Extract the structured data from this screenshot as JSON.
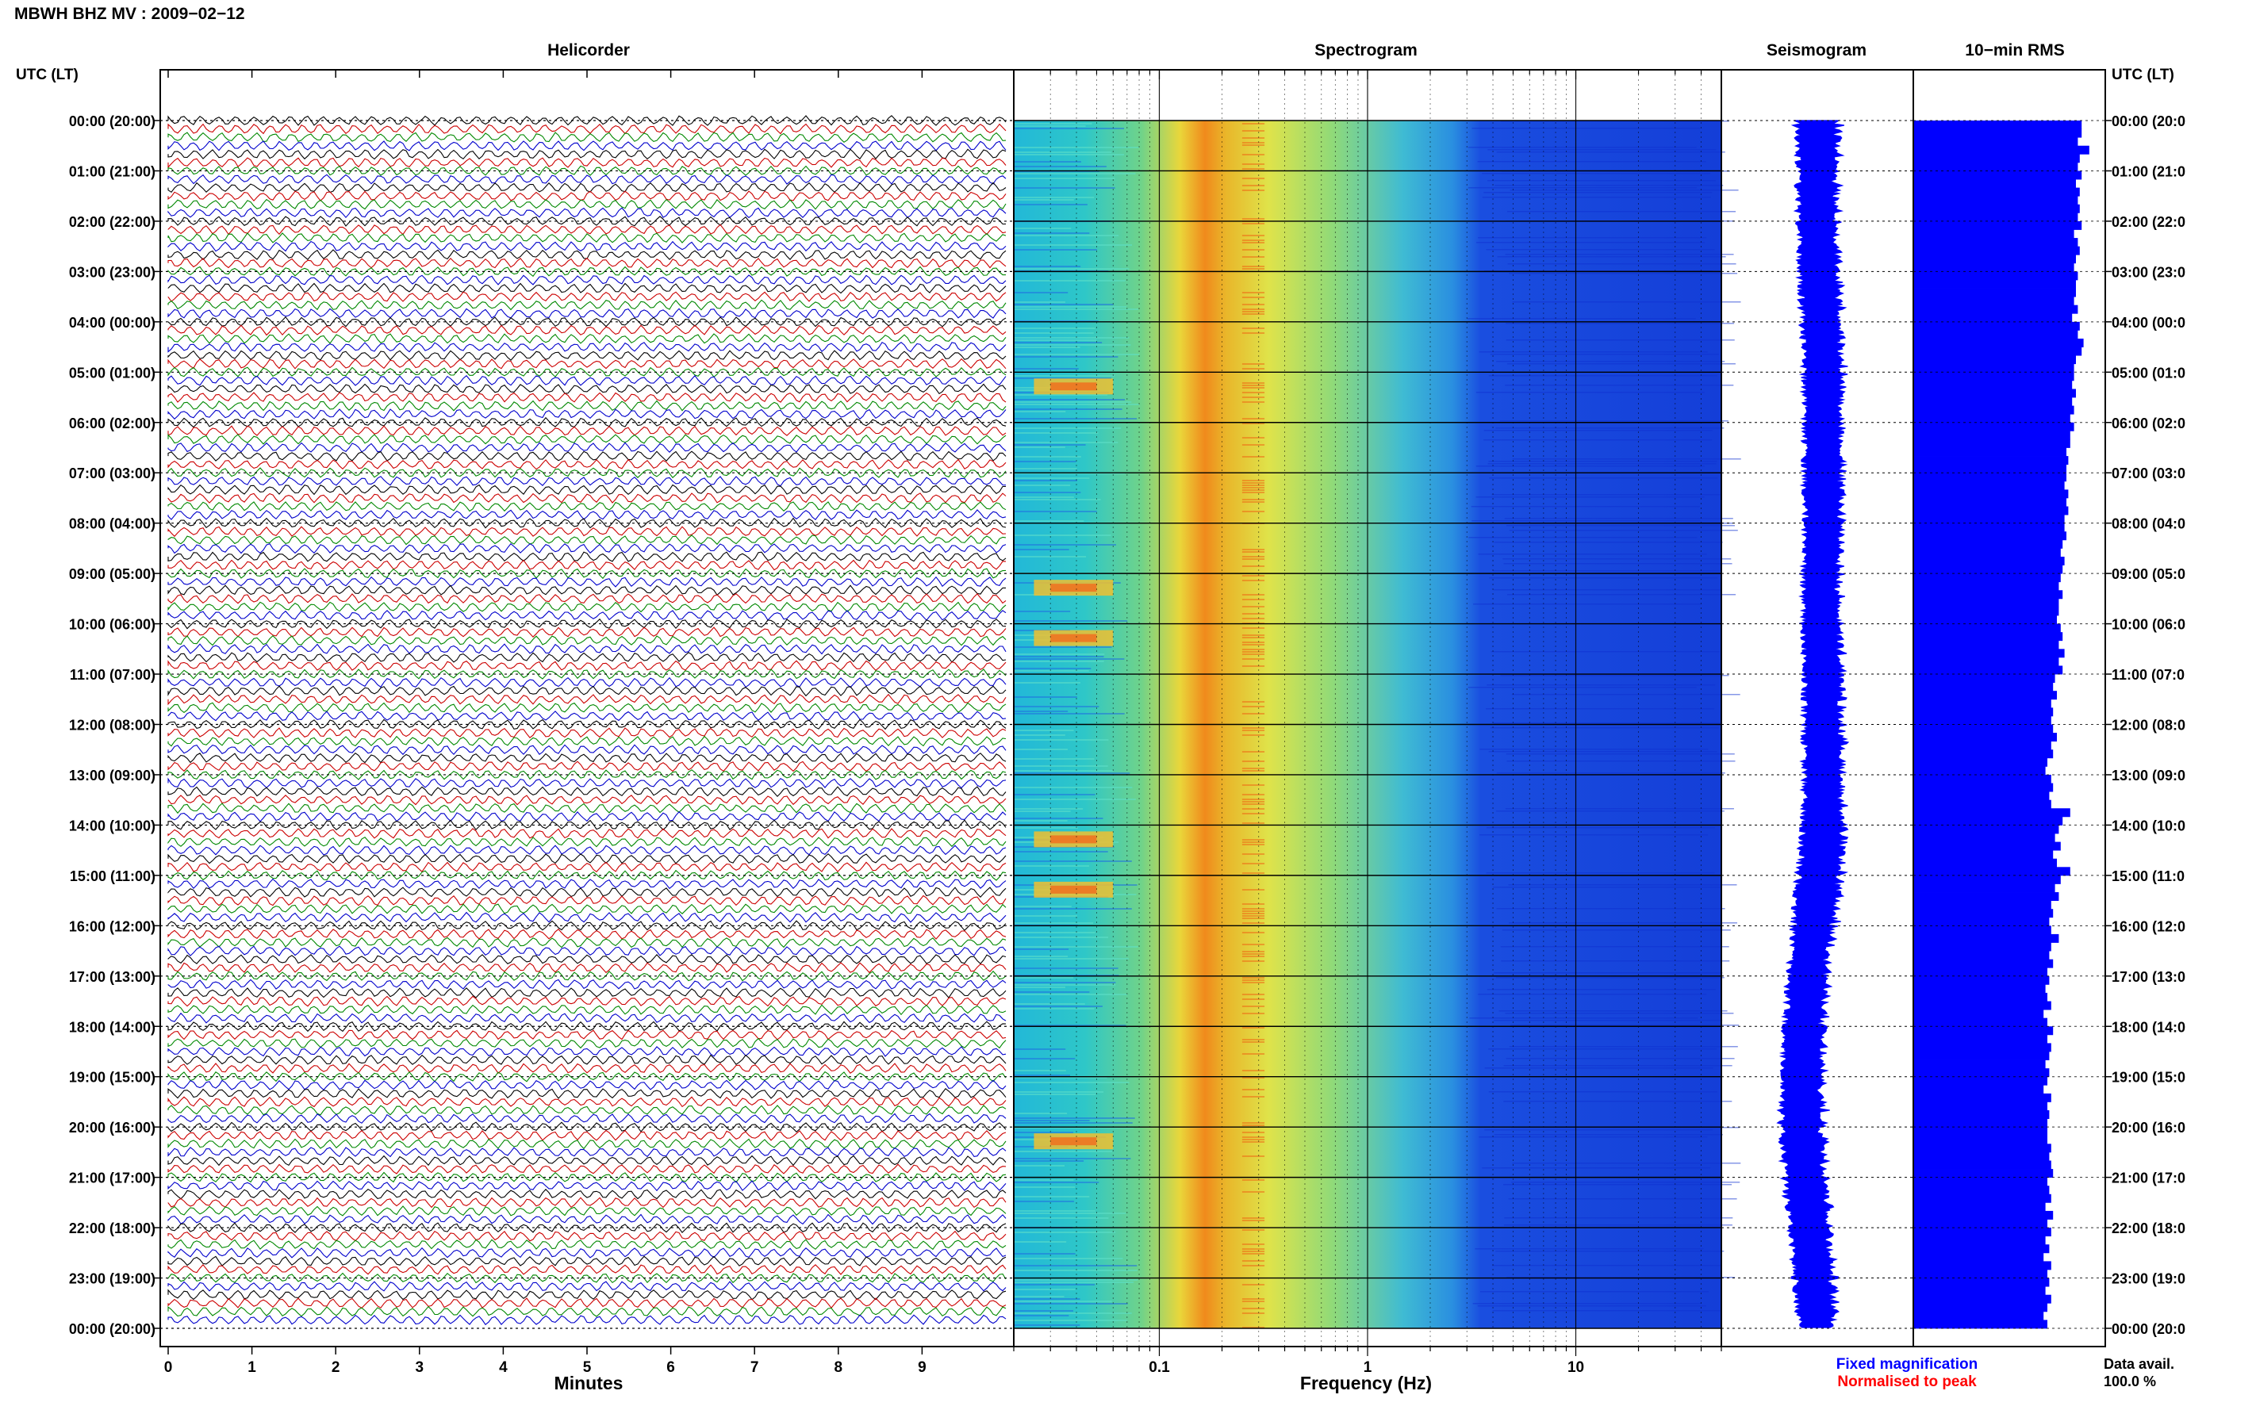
{
  "title": "MBWH BHZ MV : 2009−02−12",
  "time_header_left": "UTC (LT)",
  "time_header_right": "UTC (LT)",
  "panels": {
    "helicorder": "Helicorder",
    "spectrogram": "Spectrogram",
    "seismogram": "Seismogram",
    "rms": "10−min RMS"
  },
  "time_labels_left": [
    "00:00 (20:00)",
    "01:00 (21:00)",
    "02:00 (22:00)",
    "03:00 (23:00)",
    "04:00 (00:00)",
    "05:00 (01:00)",
    "06:00 (02:00)",
    "07:00 (03:00)",
    "08:00 (04:00)",
    "09:00 (05:00)",
    "10:00 (06:00)",
    "11:00 (07:00)",
    "12:00 (08:00)",
    "13:00 (09:00)",
    "14:00 (10:00)",
    "15:00 (11:00)",
    "16:00 (12:00)",
    "17:00 (13:00)",
    "18:00 (14:00)",
    "19:00 (15:00)",
    "20:00 (16:00)",
    "21:00 (17:00)",
    "22:00 (18:00)",
    "23:00 (19:00)",
    "00:00 (20:00)"
  ],
  "time_labels_right": [
    "00:00 (20:0",
    "01:00 (21:0",
    "02:00 (22:0",
    "03:00 (23:0",
    "04:00 (00:0",
    "05:00 (01:0",
    "06:00 (02:0",
    "07:00 (03:0",
    "08:00 (04:0",
    "09:00 (05:0",
    "10:00 (06:0",
    "11:00 (07:0",
    "12:00 (08:0",
    "13:00 (09:0",
    "14:00 (10:0",
    "15:00 (11:0",
    "16:00 (12:0",
    "17:00 (13:0",
    "18:00 (14:0",
    "19:00 (15:0",
    "20:00 (16:0",
    "21:00 (17:0",
    "22:00 (18:0",
    "23:00 (19:0",
    "00:00 (20:0"
  ],
  "helicorder_xlabel": "Minutes",
  "helicorder_xticks": [
    "0",
    "1",
    "2",
    "3",
    "4",
    "5",
    "6",
    "7",
    "8",
    "9"
  ],
  "spectrogram_xlabel": "Frequency (Hz)",
  "spectrogram_xticks": [
    "0.1",
    "1",
    "10"
  ],
  "legend": {
    "fixed": "Fixed magnification",
    "normalised": "Normalised to peak",
    "fixed_color": "#0000ff",
    "normalised_color": "#ff0000"
  },
  "data_avail_label": "Data avail.",
  "data_avail_value": "100.0 %",
  "colors": {
    "trace": [
      "#000000",
      "#cc0000",
      "#008800",
      "#0000cc"
    ],
    "seismogram": "#0000ff",
    "rms": "#0000ff"
  },
  "chart_data": [
    {
      "type": "helicorder",
      "title": "Helicorder",
      "xlabel": "Minutes",
      "xlim": [
        0,
        10
      ],
      "rows_per_hour": 6,
      "hours": 24,
      "trace_color_cycle": [
        "black",
        "red",
        "green",
        "blue"
      ]
    },
    {
      "type": "heatmap",
      "title": "Spectrogram",
      "xlabel": "Frequency (Hz)",
      "x_scale": "log",
      "xlim": [
        0.02,
        50
      ],
      "peak_band_hz": [
        0.2,
        0.35
      ],
      "low_freq_bursts_utc": [
        "05:00",
        "09:00",
        "10:00",
        "14:00",
        "15:00",
        "20:00"
      ]
    },
    {
      "type": "line",
      "title": "Seismogram",
      "x_hours_utc": [
        0,
        1,
        2,
        3,
        4,
        5,
        6,
        7,
        8,
        9,
        10,
        11,
        12,
        13,
        14,
        15,
        16,
        17,
        18,
        19,
        20,
        21,
        22,
        23,
        24
      ],
      "center_drift": [
        0.0,
        0.0,
        0.0,
        0.01,
        0.02,
        0.03,
        0.03,
        0.03,
        0.03,
        0.02,
        0.02,
        0.03,
        0.03,
        0.03,
        0.03,
        0.01,
        -0.02,
        -0.05,
        -0.07,
        -0.08,
        -0.08,
        -0.06,
        -0.04,
        -0.02,
        0.0
      ],
      "amplitude": [
        0.42,
        0.4,
        0.38,
        0.38,
        0.39,
        0.38,
        0.38,
        0.37,
        0.37,
        0.36,
        0.36,
        0.37,
        0.38,
        0.38,
        0.39,
        0.42,
        0.4,
        0.38,
        0.38,
        0.39,
        0.42,
        0.43,
        0.4,
        0.38,
        0.35
      ]
    },
    {
      "type": "bar",
      "title": "10−min RMS",
      "orientation": "horizontal",
      "bin_minutes": 10,
      "values": [
        0.88,
        0.88,
        0.86,
        0.92,
        0.87,
        0.86,
        0.88,
        0.85,
        0.87,
        0.86,
        0.87,
        0.86,
        0.88,
        0.84,
        0.86,
        0.87,
        0.85,
        0.84,
        0.86,
        0.85,
        0.85,
        0.84,
        0.86,
        0.83,
        0.87,
        0.86,
        0.89,
        0.88,
        0.85,
        0.84,
        0.84,
        0.83,
        0.85,
        0.83,
        0.84,
        0.82,
        0.84,
        0.82,
        0.82,
        0.8,
        0.81,
        0.8,
        0.8,
        0.79,
        0.81,
        0.8,
        0.81,
        0.79,
        0.79,
        0.8,
        0.78,
        0.77,
        0.79,
        0.78,
        0.77,
        0.76,
        0.78,
        0.76,
        0.76,
        0.75,
        0.77,
        0.78,
        0.76,
        0.79,
        0.76,
        0.78,
        0.74,
        0.73,
        0.75,
        0.72,
        0.73,
        0.72,
        0.73,
        0.75,
        0.72,
        0.73,
        0.7,
        0.69,
        0.72,
        0.73,
        0.71,
        0.72,
        0.82,
        0.78,
        0.76,
        0.74,
        0.77,
        0.73,
        0.75,
        0.82,
        0.77,
        0.74,
        0.76,
        0.72,
        0.73,
        0.71,
        0.72,
        0.76,
        0.72,
        0.71,
        0.73,
        0.7,
        0.71,
        0.69,
        0.7,
        0.72,
        0.68,
        0.7,
        0.73,
        0.7,
        0.72,
        0.71,
        0.69,
        0.71,
        0.7,
        0.68,
        0.72,
        0.7,
        0.71,
        0.7,
        0.7,
        0.7,
        0.72,
        0.71,
        0.72,
        0.73,
        0.7,
        0.71,
        0.72,
        0.69,
        0.73,
        0.7,
        0.72,
        0.69,
        0.71,
        0.68,
        0.72,
        0.7,
        0.71,
        0.69,
        0.72,
        0.7,
        0.68,
        0.7
      ]
    }
  ]
}
